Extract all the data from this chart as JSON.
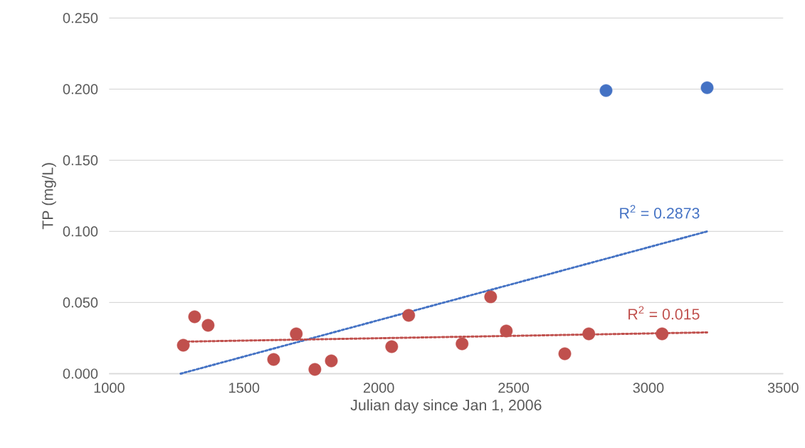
{
  "chart_data": {
    "type": "scatter",
    "xlabel": "Julian day since Jan 1, 2006",
    "ylabel": "TP (mg/L)",
    "xlim": [
      1000,
      3500
    ],
    "xticks": [
      1000,
      1500,
      2000,
      2500,
      3000,
      3500
    ],
    "ylim": [
      0,
      0.25
    ],
    "yticks": [
      {
        "value": 0,
        "label": "0.000"
      },
      {
        "value": 0.05,
        "label": "0.050"
      },
      {
        "value": 0.1,
        "label": "0.100"
      },
      {
        "value": 0.15,
        "label": "0.150"
      },
      {
        "value": 0.2,
        "label": "0.200"
      },
      {
        "value": 0.25,
        "label": "0.250"
      }
    ],
    "grid": "y",
    "series": [
      {
        "color": "#4472c4",
        "marker": "circle",
        "x": [
          2843,
          3218
        ],
        "values": [
          0.199,
          0.201
        ]
      },
      {
        "color": "#c0504d",
        "marker": "circle",
        "x": [
          1275,
          1317,
          1367,
          1610,
          1694,
          1763,
          1824,
          2048,
          2111,
          2309,
          2415,
          2473,
          2690,
          2779,
          3051
        ],
        "values": [
          0.02,
          0.04,
          0.034,
          0.01,
          0.028,
          0.003,
          0.009,
          0.019,
          0.041,
          0.021,
          0.054,
          0.03,
          0.014,
          0.028,
          0.028
        ]
      },
      {
        "type": "line",
        "marker": "none",
        "line_style": "dotted",
        "color": "#4472c4",
        "x": [
          1265,
          3218
        ],
        "values": [
          0,
          0.1
        ]
      },
      {
        "type": "line",
        "marker": "none",
        "line_style": "dotted",
        "color": "#c0504d",
        "x": [
          1275,
          3218
        ],
        "values": [
          0.0225,
          0.029
        ]
      }
    ],
    "annotations": [
      "R$^{2}$ = 0.2873",
      "R$^{2}$ = 0.015"
    ]
  }
}
